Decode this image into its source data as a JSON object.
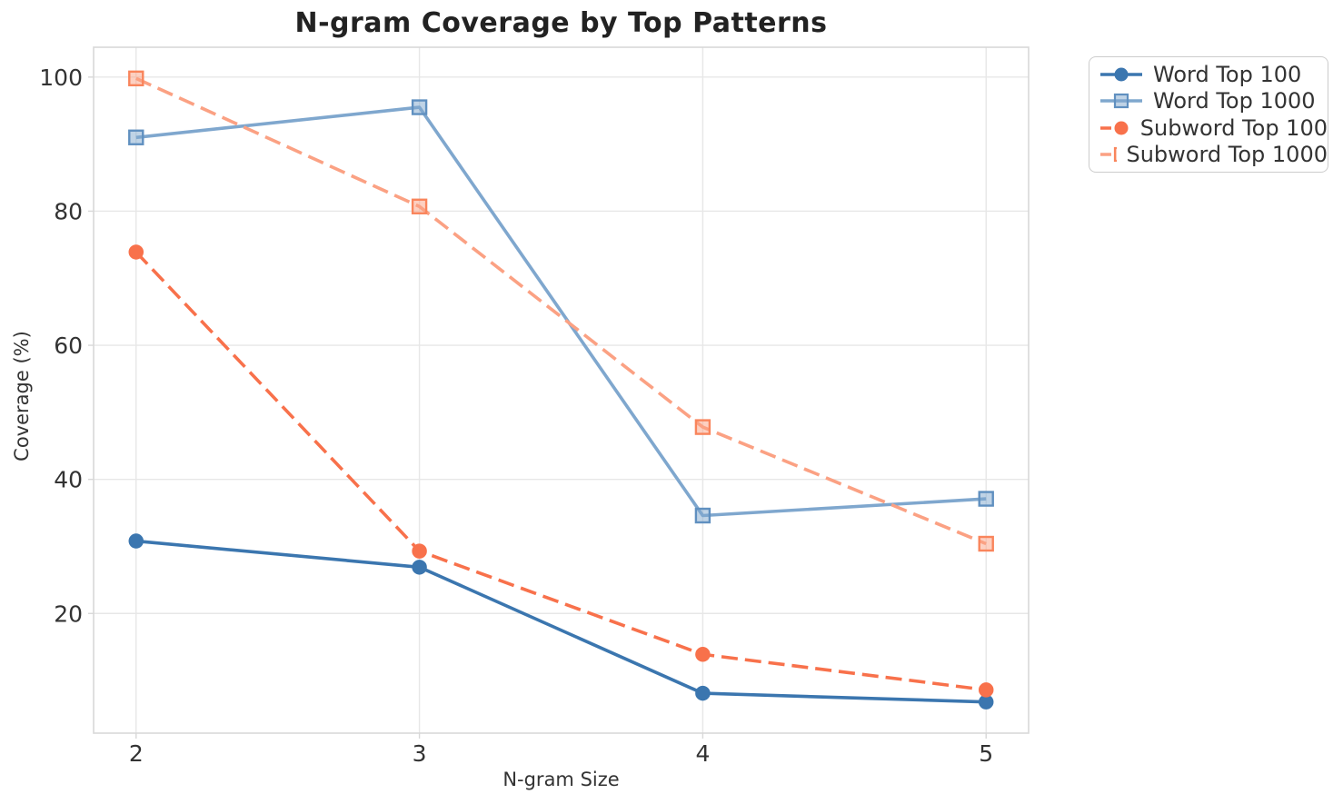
{
  "title": "N-gram Coverage by Top Patterns",
  "chart_data": {
    "type": "line",
    "title": "N-gram Coverage by Top Patterns",
    "xlabel": "N-gram Size",
    "ylabel": "Coverage (%)",
    "x": [
      2,
      3,
      4,
      5
    ],
    "x_ticks": [
      "2",
      "3",
      "4",
      "5"
    ],
    "y_ticks": [
      20,
      40,
      60,
      80,
      100
    ],
    "xlim": [
      1.85,
      5.15
    ],
    "ylim": [
      2.15,
      104.45
    ],
    "grid": true,
    "legend_position": "outside-top-right",
    "series": [
      {
        "name": "Word Top 100",
        "values": [
          30.8,
          26.9,
          8.1,
          6.8
        ],
        "color": "#3B76AF",
        "edge_color": "#3B76AF",
        "marker": "circle",
        "line_style": "solid"
      },
      {
        "name": "Word Top 1000",
        "values": [
          91.0,
          95.5,
          34.6,
          37.1
        ],
        "color": "#7FA7CE",
        "edge_color": "#6090C0",
        "marker": "square",
        "line_style": "solid"
      },
      {
        "name": "Subword Top 100",
        "values": [
          73.9,
          29.3,
          13.9,
          8.6
        ],
        "color": "#F8714B",
        "edge_color": "#F8714B",
        "marker": "circle",
        "line_style": "dashed"
      },
      {
        "name": "Subword Top 1000",
        "values": [
          99.8,
          80.7,
          47.8,
          30.4
        ],
        "color": "#FBA183",
        "edge_color": "#F9855C",
        "marker": "square",
        "line_style": "dashed"
      }
    ],
    "style": {
      "grid_color": "#E7E7E7",
      "spine_color": "#D8D8D8",
      "tick_text_color": "#333333",
      "title_color": "#222222"
    }
  }
}
